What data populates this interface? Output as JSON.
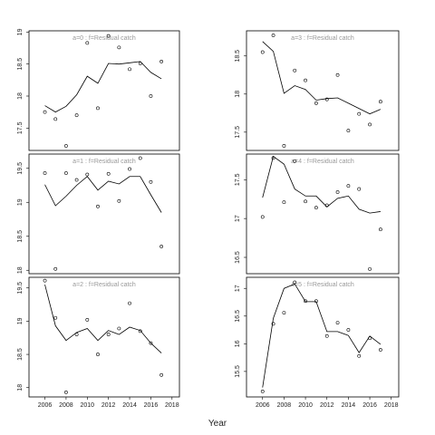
{
  "xlabel": "Year",
  "chart_data": [
    {
      "type": "scatter",
      "title": "a=0  :  f=Residual catch",
      "x": [
        2006,
        2007,
        2008,
        2009,
        2010,
        2011,
        2012,
        2013,
        2014,
        2015,
        2016,
        2017
      ],
      "points": [
        17.75,
        17.64,
        17.22,
        17.7,
        18.83,
        17.81,
        18.94,
        18.76,
        18.42,
        18.51,
        18.0,
        18.54
      ],
      "fit": [
        17.85,
        17.75,
        17.84,
        18.02,
        18.31,
        18.2,
        18.51,
        18.5,
        18.52,
        18.54,
        18.37,
        18.27
      ],
      "point_color": "#000000",
      "line_color": "#000000",
      "xlim": [
        2004.5,
        2018.7
      ],
      "ylim": [
        17.15,
        19.02
      ],
      "yticks": [
        17.5,
        18.0,
        18.5,
        19.0
      ]
    },
    {
      "type": "scatter",
      "title": "a=1  :  f=Residual catch",
      "x": [
        2006,
        2007,
        2008,
        2009,
        2010,
        2011,
        2012,
        2013,
        2014,
        2015,
        2016,
        2017
      ],
      "points": [
        19.43,
        18.02,
        19.43,
        19.33,
        19.41,
        18.94,
        19.42,
        19.02,
        19.49,
        19.65,
        19.3,
        18.35
      ],
      "fit": [
        19.26,
        18.95,
        19.09,
        19.25,
        19.38,
        19.18,
        19.31,
        19.27,
        19.38,
        19.38,
        19.11,
        18.85
      ],
      "point_color": "#000000",
      "line_color": "#000000",
      "xlim": [
        2004.5,
        2018.7
      ],
      "ylim": [
        17.95,
        19.71
      ],
      "yticks": [
        18.0,
        18.5,
        19.0,
        19.5
      ]
    },
    {
      "type": "scatter",
      "title": "a=2  :  f=Residual catch",
      "x": [
        2006,
        2007,
        2008,
        2009,
        2010,
        2011,
        2012,
        2013,
        2014,
        2015,
        2016,
        2017
      ],
      "points": [
        19.61,
        19.05,
        17.93,
        18.8,
        19.02,
        18.5,
        18.8,
        18.89,
        19.27,
        18.85,
        18.67,
        18.19
      ],
      "fit": [
        19.55,
        18.93,
        18.71,
        18.83,
        18.89,
        18.71,
        18.86,
        18.8,
        18.91,
        18.86,
        18.67,
        18.52
      ],
      "point_color": "#000000",
      "line_color": "#000000",
      "xlim": [
        2004.5,
        2018.7
      ],
      "ylim": [
        17.86,
        19.66
      ],
      "yticks": [
        18.0,
        18.5,
        19.0,
        19.5
      ],
      "xticks": [
        2006,
        2008,
        2010,
        2012,
        2014,
        2016,
        2018
      ]
    },
    {
      "type": "scatter",
      "title": "a=3  :  f=Residual catch",
      "x": [
        2006,
        2007,
        2008,
        2009,
        2010,
        2011,
        2012,
        2013,
        2014,
        2015,
        2016,
        2017
      ],
      "points": [
        18.55,
        18.77,
        17.32,
        18.31,
        18.18,
        17.88,
        17.93,
        18.25,
        17.52,
        17.74,
        17.6,
        17.9
      ],
      "fit": [
        18.69,
        18.56,
        18.01,
        18.11,
        18.06,
        17.92,
        17.94,
        17.95,
        17.88,
        17.81,
        17.74,
        17.8
      ],
      "point_color": "#000000",
      "line_color": "#000000",
      "xlim": [
        2004.5,
        2018.7
      ],
      "ylim": [
        17.26,
        18.83
      ],
      "yticks": [
        17.5,
        18.0,
        18.5
      ]
    },
    {
      "type": "scatter",
      "title": "a=4  :  f=Residual catch",
      "x": [
        2006,
        2007,
        2008,
        2009,
        2010,
        2011,
        2012,
        2013,
        2014,
        2015,
        2016,
        2017
      ],
      "points": [
        17.02,
        17.78,
        17.21,
        17.74,
        17.22,
        17.14,
        17.17,
        17.34,
        17.42,
        17.38,
        16.35,
        16.86
      ],
      "fit": [
        17.27,
        17.8,
        17.7,
        17.38,
        17.29,
        17.29,
        17.15,
        17.26,
        17.29,
        17.12,
        17.07,
        17.09
      ],
      "point_color": "#000000",
      "line_color": "#000000",
      "xlim": [
        2004.5,
        2018.7
      ],
      "ylim": [
        16.29,
        17.83
      ],
      "yticks": [
        16.5,
        17.0,
        17.5
      ]
    },
    {
      "type": "scatter",
      "title": "a=5  :  f=Residual catch",
      "x": [
        2006,
        2007,
        2008,
        2009,
        2010,
        2011,
        2012,
        2013,
        2014,
        2015,
        2016,
        2017
      ],
      "points": [
        15.14,
        16.36,
        16.56,
        17.11,
        16.77,
        16.77,
        16.14,
        16.38,
        16.25,
        15.78,
        16.1,
        15.89
      ],
      "fit": [
        15.21,
        16.46,
        17.0,
        17.08,
        16.76,
        16.76,
        16.22,
        16.22,
        16.15,
        15.84,
        16.14,
        15.99
      ],
      "point_color": "#000000",
      "line_color": "#000000",
      "xlim": [
        2004.5,
        2018.7
      ],
      "ylim": [
        15.04,
        17.2
      ],
      "yticks": [
        15.5,
        16.0,
        16.5,
        17.0
      ],
      "xticks": [
        2006,
        2008,
        2010,
        2012,
        2014,
        2016,
        2018
      ]
    }
  ]
}
